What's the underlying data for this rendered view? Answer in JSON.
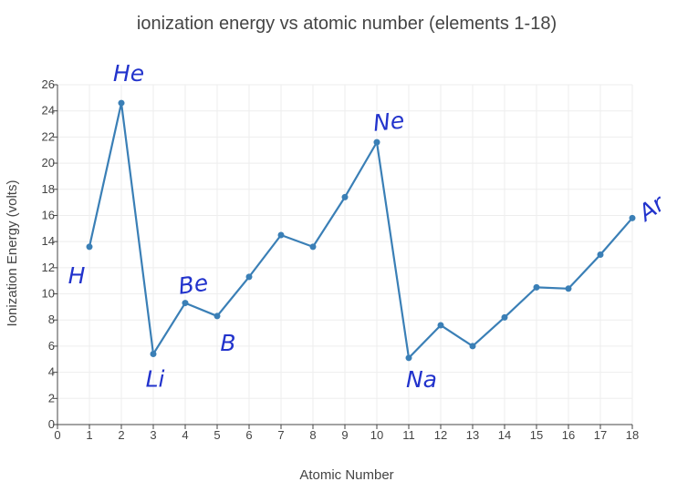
{
  "chart_data": {
    "type": "line",
    "title": "ionization energy vs atomic number (elements 1-18)",
    "xlabel": "Atomic Number",
    "ylabel": "Ionization Energy (volts)",
    "xlim": [
      0,
      18
    ],
    "ylim": [
      0,
      26
    ],
    "x_ticks": [
      0,
      1,
      2,
      3,
      4,
      5,
      6,
      7,
      8,
      9,
      10,
      11,
      12,
      13,
      14,
      15,
      16,
      17,
      18
    ],
    "y_ticks": [
      0,
      2,
      4,
      6,
      8,
      10,
      12,
      14,
      16,
      18,
      20,
      22,
      24,
      26
    ],
    "grid": true,
    "legend": "none",
    "series": [
      {
        "color": "#3a7fb6",
        "x": [
          1,
          2,
          3,
          4,
          5,
          6,
          7,
          8,
          9,
          10,
          11,
          12,
          13,
          14,
          15,
          16,
          17,
          18
        ],
        "y": [
          13.6,
          24.6,
          5.4,
          9.3,
          8.3,
          11.3,
          14.5,
          13.6,
          17.4,
          21.6,
          5.1,
          7.6,
          6.0,
          8.2,
          10.5,
          10.4,
          13.0,
          15.8
        ]
      }
    ],
    "annotations": [
      {
        "text": "H",
        "x": 1
      },
      {
        "text": "He",
        "x": 2
      },
      {
        "text": "Li",
        "x": 3
      },
      {
        "text": "Be",
        "x": 4
      },
      {
        "text": "B",
        "x": 5
      },
      {
        "text": "Ne",
        "x": 10
      },
      {
        "text": "Na",
        "x": 11
      },
      {
        "text": "Ar",
        "x": 18
      }
    ],
    "annotation_color": "#2233cc"
  }
}
